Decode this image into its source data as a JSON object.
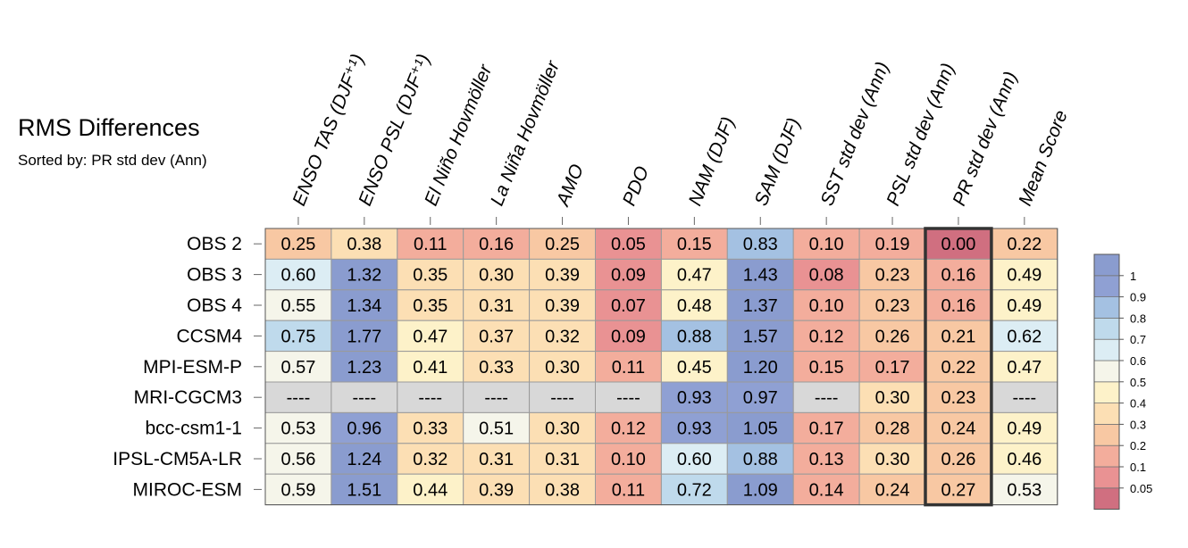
{
  "title": "RMS Differences",
  "subtitle": "Sorted by: PR std dev (Ann)",
  "chart_data": {
    "type": "heatmap",
    "columns": [
      "ENSO TAS (DJF⁺¹)",
      "ENSO PSL (DJF⁺¹)",
      "El Niño Hovmöller",
      "La Niña Hovmöller",
      "AMO",
      "PDO",
      "NAM (DJF)",
      "SAM (DJF)",
      "SST std dev (Ann)",
      "PSL std dev (Ann)",
      "PR std dev (Ann)",
      "Mean Score"
    ],
    "rows": [
      "OBS 2",
      "OBS 3",
      "OBS 4",
      "CCSM4",
      "MPI-ESM-P",
      "MRI-CGCM3",
      "bcc-csm1-1",
      "IPSL-CM5A-LR",
      "MIROC-ESM"
    ],
    "values": [
      [
        0.25,
        0.38,
        0.11,
        0.16,
        0.25,
        0.05,
        0.15,
        0.83,
        0.1,
        0.19,
        0.0,
        0.22
      ],
      [
        0.6,
        1.32,
        0.35,
        0.3,
        0.39,
        0.09,
        0.47,
        1.43,
        0.08,
        0.23,
        0.16,
        0.49
      ],
      [
        0.55,
        1.34,
        0.35,
        0.31,
        0.39,
        0.07,
        0.48,
        1.37,
        0.1,
        0.23,
        0.16,
        0.49
      ],
      [
        0.75,
        1.77,
        0.47,
        0.37,
        0.32,
        0.09,
        0.88,
        1.57,
        0.12,
        0.26,
        0.21,
        0.62
      ],
      [
        0.57,
        1.23,
        0.41,
        0.33,
        0.3,
        0.11,
        0.45,
        1.2,
        0.15,
        0.17,
        0.22,
        0.47
      ],
      [
        null,
        null,
        null,
        null,
        null,
        null,
        0.93,
        0.97,
        null,
        0.3,
        0.23,
        null
      ],
      [
        0.53,
        0.96,
        0.33,
        0.51,
        0.3,
        0.12,
        0.93,
        1.05,
        0.17,
        0.28,
        0.24,
        0.49
      ],
      [
        0.56,
        1.24,
        0.32,
        0.31,
        0.31,
        0.1,
        0.6,
        0.88,
        0.13,
        0.3,
        0.26,
        0.46
      ],
      [
        0.59,
        1.51,
        0.44,
        0.39,
        0.38,
        0.11,
        0.72,
        1.09,
        0.14,
        0.24,
        0.27,
        0.53
      ]
    ],
    "missing_label": "----",
    "highlighted_column": "PR std dev (Ann)",
    "colorbar": {
      "levels": [
        0.05,
        0.1,
        0.2,
        0.3,
        0.4,
        0.5,
        0.6,
        0.7,
        0.8,
        0.9,
        1
      ],
      "colors": [
        "#d06f80",
        "#e99293",
        "#f3ad9c",
        "#f8c8a3",
        "#fcdfb4",
        "#fdf2c9",
        "#f5f5ea",
        "#dcedf4",
        "#bfdaec",
        "#a4c1e2",
        "#8fa0d3",
        "#8a9ccf"
      ],
      "missing_color": "#d8d8d8"
    }
  }
}
